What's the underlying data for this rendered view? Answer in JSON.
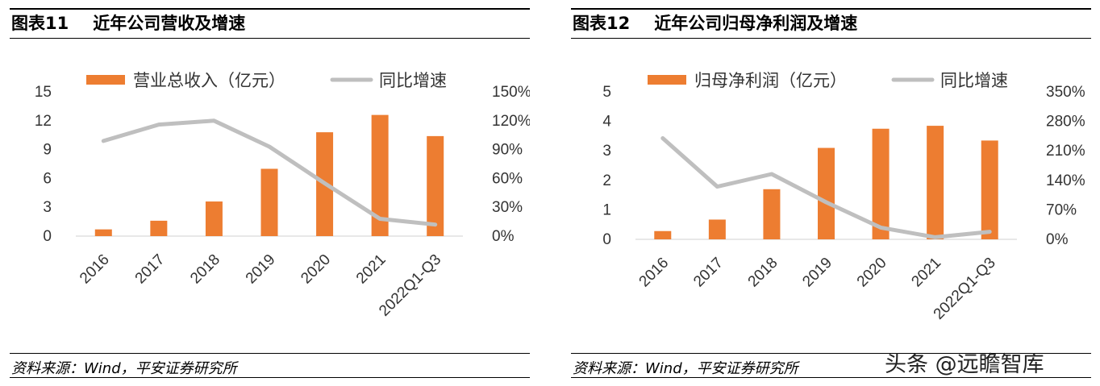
{
  "watermark": "头条 @远瞻智库",
  "panels": [
    {
      "fig_no": "图表11",
      "fig_title": "近年公司营收及增速",
      "source": "资料来源：Wind，平安证券研究所"
    },
    {
      "fig_no": "图表12",
      "fig_title": "近年公司归母净利润及增速",
      "source": "资料来源：Wind，平安证券研究所"
    }
  ],
  "colors": {
    "bar": "#ED7D31",
    "line": "#BFBFBF"
  },
  "chart_data": [
    {
      "type": "bar",
      "categories": [
        "2016",
        "2017",
        "2018",
        "2019",
        "2020",
        "2021",
        "2022Q1-Q3"
      ],
      "series": [
        {
          "name": "营业总收入（亿元）",
          "type": "bar",
          "axis": "left",
          "values": [
            0.7,
            1.6,
            3.6,
            7.0,
            10.8,
            12.6,
            10.4
          ]
        },
        {
          "name": "同比增速",
          "type": "line",
          "axis": "right",
          "values": [
            99,
            116,
            120,
            93,
            55,
            18,
            12
          ]
        }
      ],
      "y_left": {
        "min": 0,
        "max": 15,
        "ticks": [
          "0",
          "3",
          "6",
          "9",
          "12",
          "15"
        ]
      },
      "y_right": {
        "min": 0,
        "max": 150,
        "ticks": [
          "0%",
          "30%",
          "60%",
          "90%",
          "120%",
          "150%"
        ]
      },
      "legend": "top",
      "grid": false
    },
    {
      "type": "bar",
      "categories": [
        "2016",
        "2017",
        "2018",
        "2019",
        "2020",
        "2021",
        "2022Q1-Q3"
      ],
      "series": [
        {
          "name": "归母净利润（亿元）",
          "type": "bar",
          "axis": "left",
          "values": [
            0.28,
            0.67,
            1.7,
            3.1,
            3.75,
            3.85,
            3.35
          ]
        },
        {
          "name": "同比增速",
          "type": "line",
          "axis": "right",
          "values": [
            240,
            125,
            155,
            88,
            28,
            5,
            18
          ]
        }
      ],
      "y_left": {
        "min": 0,
        "max": 5,
        "ticks": [
          "0",
          "1",
          "2",
          "3",
          "4",
          "5"
        ]
      },
      "y_right": {
        "min": 0,
        "max": 350,
        "ticks": [
          "0%",
          "70%",
          "140%",
          "210%",
          "280%",
          "350%"
        ]
      },
      "legend": "top",
      "grid": false
    }
  ]
}
